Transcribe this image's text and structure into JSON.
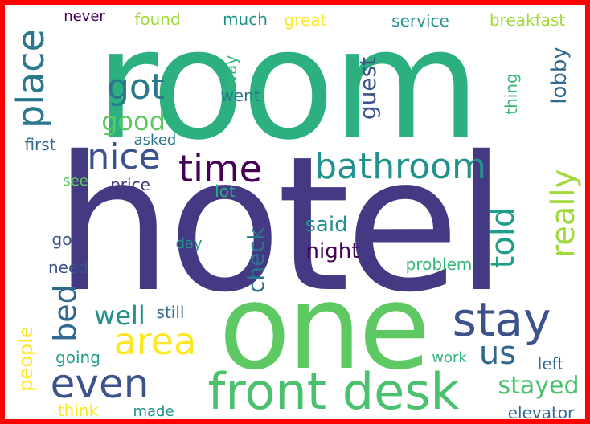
{
  "palette": {
    "teal": "#2cb07f",
    "indigo": "#443983",
    "green": "#5ec962",
    "darkgreen": "#4ac16d",
    "blue": "#3b528b",
    "tealblue": "#21918c",
    "seablue": "#2a788e",
    "purple": "#440154",
    "yellow": "#fde725",
    "lime": "#9fda3a",
    "midteal": "#1f9e89",
    "navy": "#31688e",
    "lightteal": "#35b779",
    "frame": "#ff0000"
  },
  "words": [
    {
      "id": "room",
      "text": "room"
    },
    {
      "id": "hotel",
      "text": "hotel"
    },
    {
      "id": "one",
      "text": "one"
    },
    {
      "id": "front-desk",
      "text": "front desk"
    },
    {
      "id": "stay",
      "text": "stay"
    },
    {
      "id": "bathroom",
      "text": "bathroom"
    },
    {
      "id": "time",
      "text": "time"
    },
    {
      "id": "nice",
      "text": "nice"
    },
    {
      "id": "got",
      "text": "got"
    },
    {
      "id": "place",
      "text": "place"
    },
    {
      "id": "even",
      "text": "even"
    },
    {
      "id": "area",
      "text": "area"
    },
    {
      "id": "us",
      "text": "us"
    },
    {
      "id": "really",
      "text": "really"
    },
    {
      "id": "told",
      "text": "told"
    },
    {
      "id": "bed",
      "text": "bed"
    },
    {
      "id": "well",
      "text": "well"
    },
    {
      "id": "good",
      "text": "good"
    },
    {
      "id": "stayed",
      "text": "stayed"
    },
    {
      "id": "guest",
      "text": "guest"
    },
    {
      "id": "night",
      "text": "night"
    },
    {
      "id": "said",
      "text": "said"
    },
    {
      "id": "check",
      "text": "check"
    },
    {
      "id": "lobby",
      "text": "lobby"
    },
    {
      "id": "breakfast",
      "text": "breakfast"
    },
    {
      "id": "service",
      "text": "service"
    },
    {
      "id": "great",
      "text": "great"
    },
    {
      "id": "much",
      "text": "much"
    },
    {
      "id": "found",
      "text": "found"
    },
    {
      "id": "never",
      "text": "never"
    },
    {
      "id": "people",
      "text": "people"
    },
    {
      "id": "elevator",
      "text": "elevator"
    },
    {
      "id": "problem",
      "text": "problem"
    },
    {
      "id": "first",
      "text": "first"
    },
    {
      "id": "asked",
      "text": "asked"
    },
    {
      "id": "price",
      "text": "price"
    },
    {
      "id": "see",
      "text": "see"
    },
    {
      "id": "lot",
      "text": "lot"
    },
    {
      "id": "day",
      "text": "day"
    },
    {
      "id": "go",
      "text": "go"
    },
    {
      "id": "need",
      "text": "need"
    },
    {
      "id": "still",
      "text": "still"
    },
    {
      "id": "going",
      "text": "going"
    },
    {
      "id": "made",
      "text": "made"
    },
    {
      "id": "think",
      "text": "think"
    },
    {
      "id": "work",
      "text": "work"
    },
    {
      "id": "left",
      "text": "left"
    },
    {
      "id": "went",
      "text": "went"
    },
    {
      "id": "way",
      "text": "way"
    },
    {
      "id": "thing",
      "text": "thing"
    }
  ]
}
